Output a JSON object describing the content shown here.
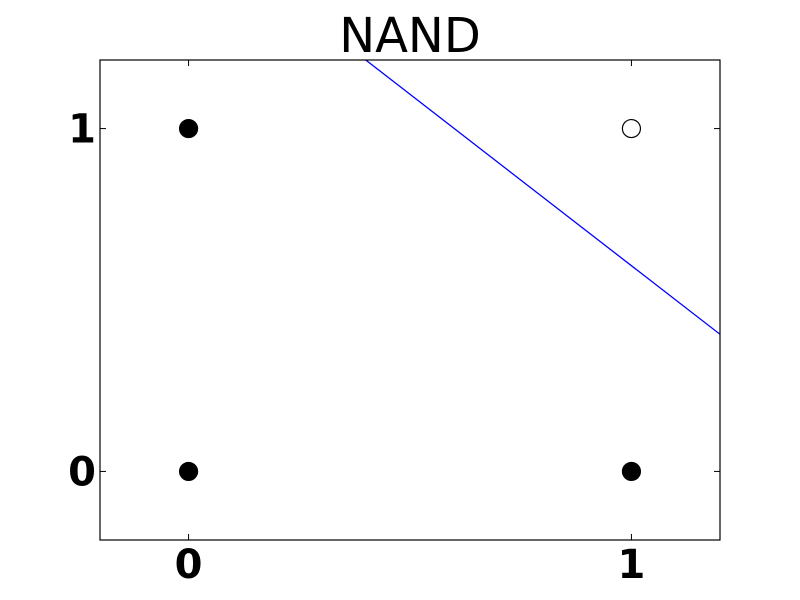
{
  "chart_data": {
    "type": "scatter",
    "title": "NAND",
    "xlabel": "",
    "ylabel": "",
    "xlim": [
      -0.2,
      1.2
    ],
    "ylim": [
      -0.2,
      1.2
    ],
    "grid": false,
    "x_ticks": [
      {
        "value": 0,
        "label": "0"
      },
      {
        "value": 1,
        "label": "1"
      }
    ],
    "y_ticks": [
      {
        "value": 0,
        "label": "0"
      },
      {
        "value": 1,
        "label": "1"
      }
    ],
    "points": [
      {
        "x": 0,
        "y": 0,
        "filled": true
      },
      {
        "x": 0,
        "y": 1,
        "filled": true
      },
      {
        "x": 1,
        "y": 0,
        "filled": true
      },
      {
        "x": 1,
        "y": 1,
        "filled": false
      }
    ],
    "decision_boundary": {
      "points": [
        [
          0.4,
          1.2
        ],
        [
          1.2,
          0.4
        ]
      ],
      "color": "#0000ff"
    },
    "colors": {
      "marker": "#000000",
      "axes": "#000000",
      "background": "#ffffff"
    }
  }
}
